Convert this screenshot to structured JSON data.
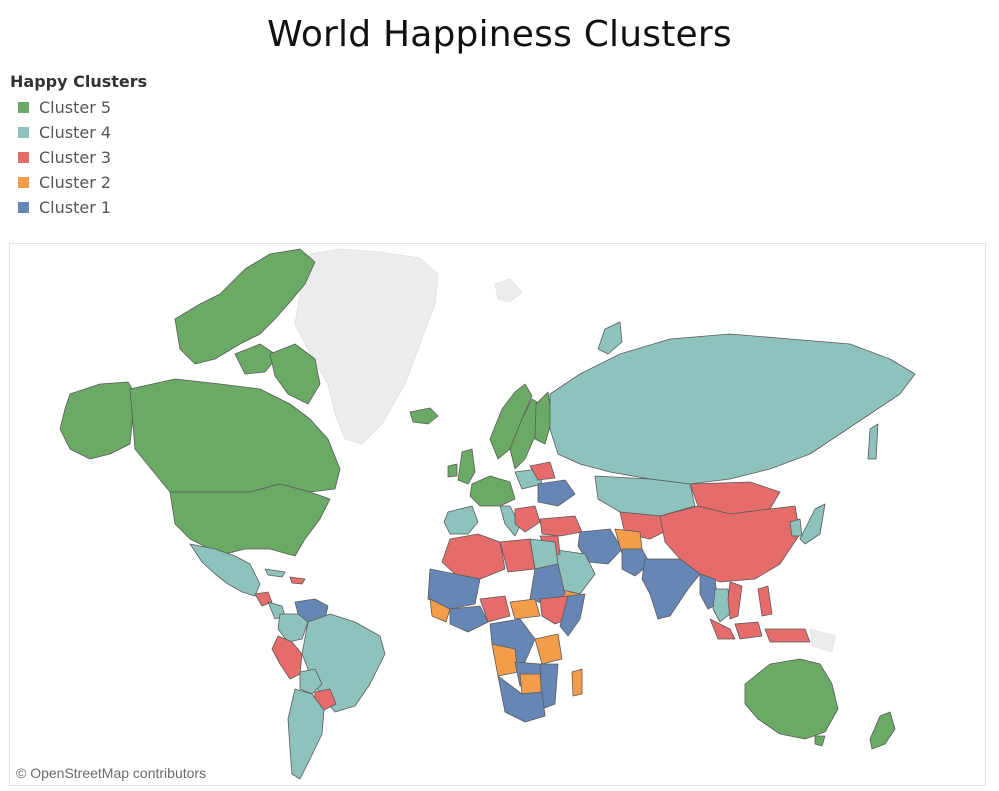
{
  "title": "World Happiness Clusters",
  "legend": {
    "title": "Happy Clusters",
    "items": [
      {
        "label": "Cluster 5",
        "color": "#6aaa64"
      },
      {
        "label": "Cluster 4",
        "color": "#8ec2bd"
      },
      {
        "label": "Cluster 3",
        "color": "#e56c6b"
      },
      {
        "label": "Cluster 2",
        "color": "#f39c49"
      },
      {
        "label": "Cluster 1",
        "color": "#6687b5"
      }
    ]
  },
  "map": {
    "attribution": "© OpenStreetMap contributors",
    "colors": {
      "cluster5": "#6aaa64",
      "cluster4": "#8ec2bd",
      "cluster3": "#e56c6b",
      "cluster2": "#f39c49",
      "cluster1": "#6687b5",
      "no_data": "#ececec"
    }
  }
}
